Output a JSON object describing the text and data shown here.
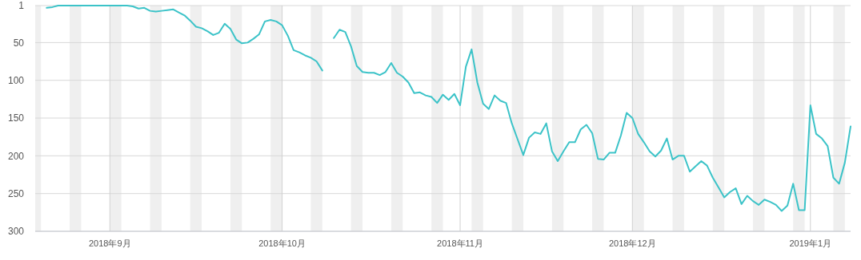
{
  "chart_data": {
    "type": "line",
    "x": [
      "2018-08-21",
      "2018-08-22",
      "2018-08-23",
      "2018-08-24",
      "2018-08-25",
      "2018-08-26",
      "2018-08-27",
      "2018-08-28",
      "2018-08-29",
      "2018-08-30",
      "2018-08-31",
      "2018-09-01",
      "2018-09-02",
      "2018-09-03",
      "2018-09-04",
      "2018-09-05",
      "2018-09-06",
      "2018-09-07",
      "2018-09-08",
      "2018-09-09",
      "2018-09-10",
      "2018-09-11",
      "2018-09-12",
      "2018-09-13",
      "2018-09-14",
      "2018-09-15",
      "2018-09-16",
      "2018-09-17",
      "2018-09-18",
      "2018-09-19",
      "2018-09-20",
      "2018-09-21",
      "2018-09-22",
      "2018-09-23",
      "2018-09-24",
      "2018-09-25",
      "2018-09-26",
      "2018-09-27",
      "2018-09-28",
      "2018-09-29",
      "2018-09-30",
      "2018-10-01",
      "2018-10-02",
      "2018-10-03",
      "2018-10-04",
      "2018-10-05",
      "2018-10-06",
      "2018-10-07",
      "2018-10-08",
      "2018-10-09",
      "2018-10-10",
      "2018-10-11",
      "2018-10-12",
      "2018-10-13",
      "2018-10-14",
      "2018-10-15",
      "2018-10-16",
      "2018-10-17",
      "2018-10-18",
      "2018-10-19",
      "2018-10-20",
      "2018-10-21",
      "2018-10-22",
      "2018-10-23",
      "2018-10-24",
      "2018-10-25",
      "2018-10-26",
      "2018-10-27",
      "2018-10-28",
      "2018-10-29",
      "2018-10-30",
      "2018-10-31",
      "2018-11-01",
      "2018-11-02",
      "2018-11-03",
      "2018-11-04",
      "2018-11-05",
      "2018-11-06",
      "2018-11-07",
      "2018-11-08",
      "2018-11-09",
      "2018-11-10",
      "2018-11-11",
      "2018-11-12",
      "2018-11-13",
      "2018-11-14",
      "2018-11-15",
      "2018-11-16",
      "2018-11-17",
      "2018-11-18",
      "2018-11-19",
      "2018-11-20",
      "2018-11-21",
      "2018-11-22",
      "2018-11-23",
      "2018-11-24",
      "2018-11-25",
      "2018-11-26",
      "2018-11-27",
      "2018-11-28",
      "2018-11-29",
      "2018-11-30",
      "2018-12-01",
      "2018-12-02",
      "2018-12-03",
      "2018-12-04",
      "2018-12-05",
      "2018-12-06",
      "2018-12-07",
      "2018-12-08",
      "2018-12-09",
      "2018-12-10",
      "2018-12-11",
      "2018-12-12",
      "2018-12-13",
      "2018-12-14",
      "2018-12-15",
      "2018-12-16",
      "2018-12-17",
      "2018-12-18",
      "2018-12-19",
      "2018-12-20",
      "2018-12-21",
      "2018-12-22",
      "2018-12-23",
      "2018-12-24",
      "2018-12-25",
      "2018-12-26",
      "2018-12-27",
      "2018-12-28",
      "2018-12-29",
      "2018-12-30",
      "2018-12-31",
      "2019-01-01",
      "2019-01-02",
      "2019-01-03",
      "2019-01-04",
      "2019-01-05",
      "2019-01-06",
      "2019-01-07",
      "2019-01-08"
    ],
    "series": [
      {
        "color": "#3cc3c8",
        "values": [
          4,
          3,
          1,
          1,
          1,
          1,
          1,
          1,
          1,
          1,
          1,
          1,
          1,
          1,
          1,
          2,
          5,
          4,
          8,
          9,
          8,
          7,
          6,
          10,
          14,
          21,
          29,
          31,
          35,
          40,
          37,
          25,
          32,
          46,
          51,
          50,
          45,
          39,
          22,
          20,
          22,
          27,
          41,
          60,
          63,
          67,
          70,
          75,
          87,
          null,
          44,
          33,
          36,
          55,
          81,
          89,
          90,
          90,
          93,
          89,
          77,
          90,
          95,
          103,
          117,
          116,
          120,
          122,
          130,
          119,
          126,
          118,
          133,
          82,
          59,
          103,
          131,
          138,
          120,
          127,
          130,
          157,
          178,
          199,
          176,
          169,
          171,
          157,
          194,
          207,
          194,
          182,
          182,
          165,
          159,
          170,
          204,
          205,
          196,
          196,
          173,
          143,
          150,
          171,
          182,
          194,
          201,
          193,
          177,
          205,
          200,
          200,
          221,
          214,
          207,
          213,
          229,
          242,
          255,
          248,
          243,
          264,
          253,
          260,
          265,
          258,
          261,
          265,
          273,
          266,
          237,
          272,
          272,
          133,
          171,
          177,
          187,
          229,
          237,
          209,
          161
        ]
      }
    ],
    "xlim": [
      "2018-08-19",
      "2019-01-08"
    ],
    "xticks": [
      {
        "value": "2018-09-01",
        "label": "2018年9月"
      },
      {
        "value": "2018-10-01",
        "label": "2018年10月"
      },
      {
        "value": "2018-11-01",
        "label": "2018年11月"
      },
      {
        "value": "2018-12-01",
        "label": "2018年12月"
      },
      {
        "value": "2019-01-01",
        "label": "2019年1月"
      }
    ],
    "ylim": [
      300,
      1
    ],
    "yticks": [
      1,
      50,
      100,
      150,
      200,
      250,
      300
    ],
    "grid": true,
    "marker": "none",
    "line_style": "solid",
    "bands": [
      {
        "axis": "x",
        "from": "2018-08-19",
        "to": "2018-08-20",
        "color": "#efefef"
      },
      {
        "axis": "x",
        "from": "2018-08-25",
        "to": "2018-08-27",
        "color": "#efefef"
      },
      {
        "axis": "x",
        "from": "2018-09-01",
        "to": "2018-09-03",
        "color": "#efefef"
      },
      {
        "axis": "x",
        "from": "2018-09-08",
        "to": "2018-09-10",
        "color": "#efefef"
      },
      {
        "axis": "x",
        "from": "2018-09-15",
        "to": "2018-09-17",
        "color": "#efefef"
      },
      {
        "axis": "x",
        "from": "2018-09-22",
        "to": "2018-09-24",
        "color": "#efefef"
      },
      {
        "axis": "x",
        "from": "2018-09-29",
        "to": "2018-10-01",
        "color": "#efefef"
      },
      {
        "axis": "x",
        "from": "2018-10-06",
        "to": "2018-10-08",
        "color": "#efefef"
      },
      {
        "axis": "x",
        "from": "2018-10-13",
        "to": "2018-10-15",
        "color": "#efefef"
      },
      {
        "axis": "x",
        "from": "2018-10-20",
        "to": "2018-10-22",
        "color": "#efefef"
      },
      {
        "axis": "x",
        "from": "2018-10-27",
        "to": "2018-10-29",
        "color": "#efefef"
      },
      {
        "axis": "x",
        "from": "2018-11-03",
        "to": "2018-11-05",
        "color": "#efefef"
      },
      {
        "axis": "x",
        "from": "2018-11-10",
        "to": "2018-11-12",
        "color": "#efefef"
      },
      {
        "axis": "x",
        "from": "2018-11-17",
        "to": "2018-11-19",
        "color": "#efefef"
      },
      {
        "axis": "x",
        "from": "2018-11-24",
        "to": "2018-11-26",
        "color": "#efefef"
      },
      {
        "axis": "x",
        "from": "2018-12-01",
        "to": "2018-12-03",
        "color": "#efefef"
      },
      {
        "axis": "x",
        "from": "2018-12-08",
        "to": "2018-12-10",
        "color": "#efefef"
      },
      {
        "axis": "x",
        "from": "2018-12-15",
        "to": "2018-12-17",
        "color": "#efefef"
      },
      {
        "axis": "x",
        "from": "2018-12-22",
        "to": "2018-12-24",
        "color": "#efefef"
      },
      {
        "axis": "x",
        "from": "2018-12-29",
        "to": "2018-12-31",
        "color": "#efefef"
      },
      {
        "axis": "x",
        "from": "2019-01-05",
        "to": "2019-01-07",
        "color": "#efefef"
      }
    ]
  }
}
